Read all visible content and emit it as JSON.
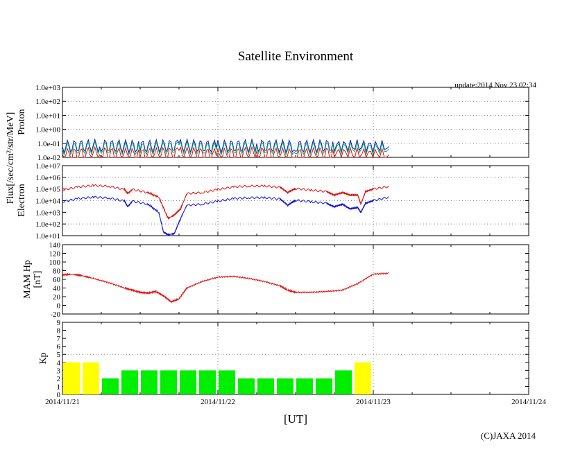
{
  "title": "Satellite Environment",
  "update_text": "update:2014 Nov 23 02:34",
  "copyright": "(C)JAXA 2014",
  "xlabel": "[UT]",
  "x_ticks": [
    "2014/11/21",
    "2014/11/22",
    "2014/11/23",
    "2014/11/24"
  ],
  "flux_label": "Flux[/sec/cm²/str/MeV]",
  "colors": {
    "red": "#e01010",
    "blue": "#1010e0",
    "green": "#10b060",
    "yellow": "#ffff00",
    "lime": "#00ee00",
    "grid": "#888888"
  },
  "chart_data": [
    {
      "name": "proton",
      "type": "line",
      "ylabel": "Proton",
      "yscale": "log",
      "ylim": [
        0.01,
        1000
      ],
      "y_ticks": [
        "1.0e+03",
        "1.0e+02",
        "1.0e+01",
        "1.0e+00",
        "1.0e-01",
        "1.0e-02"
      ],
      "xlim_days": [
        0,
        3
      ],
      "series": [
        {
          "name": "proton-blue",
          "color": "blue",
          "x_days": [
            0,
            0.25,
            0.5,
            0.75,
            1.0,
            1.25,
            1.5,
            1.75,
            2.1
          ],
          "values": [
            0.06,
            0.07,
            0.06,
            0.07,
            0.06,
            0.07,
            0.06,
            0.07,
            0.06
          ]
        },
        {
          "name": "proton-green",
          "color": "green",
          "x_days": [
            0,
            0.25,
            0.5,
            0.75,
            1.0,
            1.25,
            1.5,
            1.75,
            2.1
          ],
          "values": [
            0.04,
            0.05,
            0.04,
            0.05,
            0.04,
            0.05,
            0.04,
            0.05,
            0.04
          ]
        },
        {
          "name": "proton-red",
          "color": "red",
          "x_days": [
            0,
            0.25,
            0.5,
            0.75,
            1.0,
            1.25,
            1.5,
            1.75,
            2.1
          ],
          "values": [
            0.015,
            0.02,
            0.015,
            0.02,
            0.015,
            0.02,
            0.015,
            0.02,
            0.015
          ]
        }
      ]
    },
    {
      "name": "electron",
      "type": "line",
      "ylabel": "Electron",
      "yscale": "log",
      "ylim": [
        10,
        10000000
      ],
      "y_ticks": [
        "1.0e+07",
        "1.0e+06",
        "1.0e+05",
        "1.0e+04",
        "1.0e+03",
        "1.0e+02",
        "1.0e+01"
      ],
      "xlim_days": [
        0,
        3
      ],
      "series": [
        {
          "name": "electron-red",
          "color": "red",
          "x_days": [
            0,
            0.1,
            0.2,
            0.3,
            0.4,
            0.42,
            0.45,
            0.55,
            0.62,
            0.68,
            0.72,
            0.76,
            0.8,
            0.9,
            1.0,
            1.1,
            1.2,
            1.3,
            1.4,
            1.45,
            1.5,
            1.6,
            1.7,
            1.75,
            1.8,
            1.85,
            1.9,
            1.92,
            1.95,
            2.0,
            2.1
          ],
          "values": [
            80000,
            150000,
            200000,
            170000,
            90000,
            40000,
            90000,
            50000,
            20000,
            300,
            600,
            2000,
            40000,
            50000,
            90000,
            150000,
            180000,
            180000,
            140000,
            50000,
            110000,
            80000,
            60000,
            30000,
            50000,
            30000,
            30000,
            5000,
            60000,
            100000,
            160000
          ]
        },
        {
          "name": "electron-blue",
          "color": "blue",
          "x_days": [
            0,
            0.1,
            0.2,
            0.3,
            0.4,
            0.42,
            0.45,
            0.55,
            0.62,
            0.65,
            0.68,
            0.72,
            0.76,
            0.8,
            0.9,
            1.0,
            1.1,
            1.2,
            1.3,
            1.4,
            1.45,
            1.5,
            1.6,
            1.7,
            1.75,
            1.8,
            1.85,
            1.9,
            1.92,
            1.95,
            2.0,
            2.1
          ],
          "values": [
            8000,
            15000,
            20000,
            17000,
            9000,
            3000,
            9000,
            5000,
            1000,
            20,
            12,
            15,
            300,
            4000,
            5000,
            9000,
            15000,
            18000,
            18000,
            14000,
            4000,
            11000,
            8000,
            6000,
            3000,
            5000,
            2000,
            2500,
            1000,
            6000,
            10000,
            20000
          ]
        }
      ]
    },
    {
      "name": "mam-hp",
      "type": "line",
      "ylabel": "MAM Hp",
      "yunit": "[nT]",
      "yscale": "linear",
      "ylim": [
        -20,
        140
      ],
      "y_ticks": [
        "140",
        "120",
        "100",
        "80",
        "60",
        "40",
        "20",
        "0",
        "-20"
      ],
      "xlim_days": [
        0,
        3
      ],
      "series": [
        {
          "name": "mam-hp-red",
          "color": "red",
          "x_days": [
            0,
            0.05,
            0.12,
            0.2,
            0.3,
            0.4,
            0.45,
            0.5,
            0.55,
            0.6,
            0.65,
            0.7,
            0.75,
            0.8,
            0.9,
            1.0,
            1.1,
            1.2,
            1.3,
            1.4,
            1.45,
            1.5,
            1.6,
            1.7,
            1.8,
            1.9,
            2.0,
            2.1
          ],
          "values": [
            70,
            72,
            69,
            62,
            52,
            40,
            35,
            30,
            28,
            32,
            22,
            8,
            15,
            40,
            55,
            65,
            67,
            62,
            55,
            45,
            35,
            30,
            30,
            32,
            35,
            50,
            72,
            74
          ]
        }
      ]
    },
    {
      "name": "kp",
      "type": "bar",
      "ylabel": "Kp",
      "yscale": "linear",
      "ylim": [
        0,
        9
      ],
      "y_ticks": [
        "9",
        "8",
        "7",
        "6",
        "5",
        "4",
        "3",
        "2",
        "1",
        "0"
      ],
      "xlim_days": [
        0,
        3
      ],
      "bar_interval_hours": 3,
      "values": [
        4,
        4,
        2,
        3,
        3,
        3,
        3,
        3,
        3,
        2,
        2,
        2,
        2,
        2,
        3,
        4
      ],
      "bar_colors": [
        "yellow",
        "yellow",
        "lime",
        "lime",
        "lime",
        "lime",
        "lime",
        "lime",
        "lime",
        "lime",
        "lime",
        "lime",
        "lime",
        "lime",
        "lime",
        "yellow"
      ]
    }
  ]
}
